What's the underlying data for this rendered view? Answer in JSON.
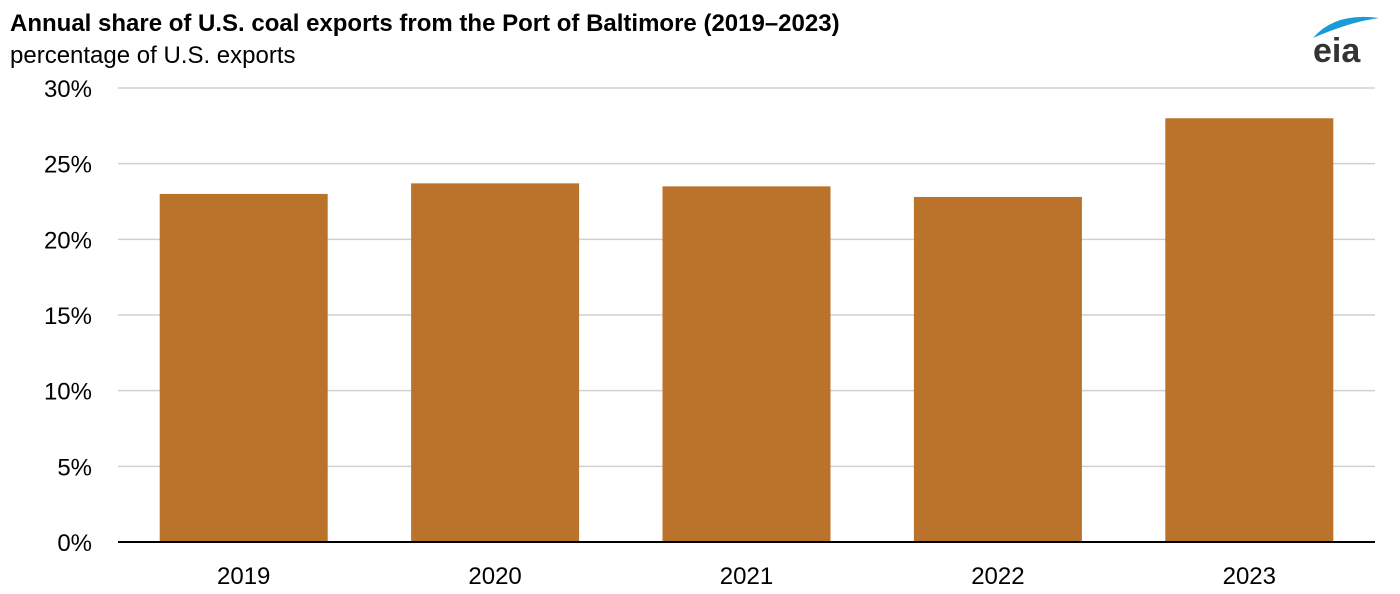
{
  "chart_data": {
    "type": "bar",
    "title": "Annual share of U.S. coal exports from the Port of Baltimore (2019–2023)",
    "subtitle": "percentage of U.S. exports",
    "categories": [
      "2019",
      "2020",
      "2021",
      "2022",
      "2023"
    ],
    "series": [
      {
        "values": [
          23.0,
          23.7,
          23.5,
          22.8,
          28.0
        ]
      }
    ],
    "ylim": [
      0,
      30
    ],
    "yticks": [
      0,
      5,
      10,
      15,
      20,
      25,
      30
    ],
    "ytick_labels": [
      "0%",
      "5%",
      "10%",
      "15%",
      "20%",
      "25%",
      "30%"
    ],
    "grid": true,
    "legend": "none",
    "colors": {
      "bar": "#bb722b",
      "grid": "#d0d0d0",
      "axis": "#000000",
      "logo_arc": "#1a9bd7",
      "logo_text": "#333333"
    }
  },
  "logo": {
    "text": "eia",
    "icon": "eia-logo"
  }
}
